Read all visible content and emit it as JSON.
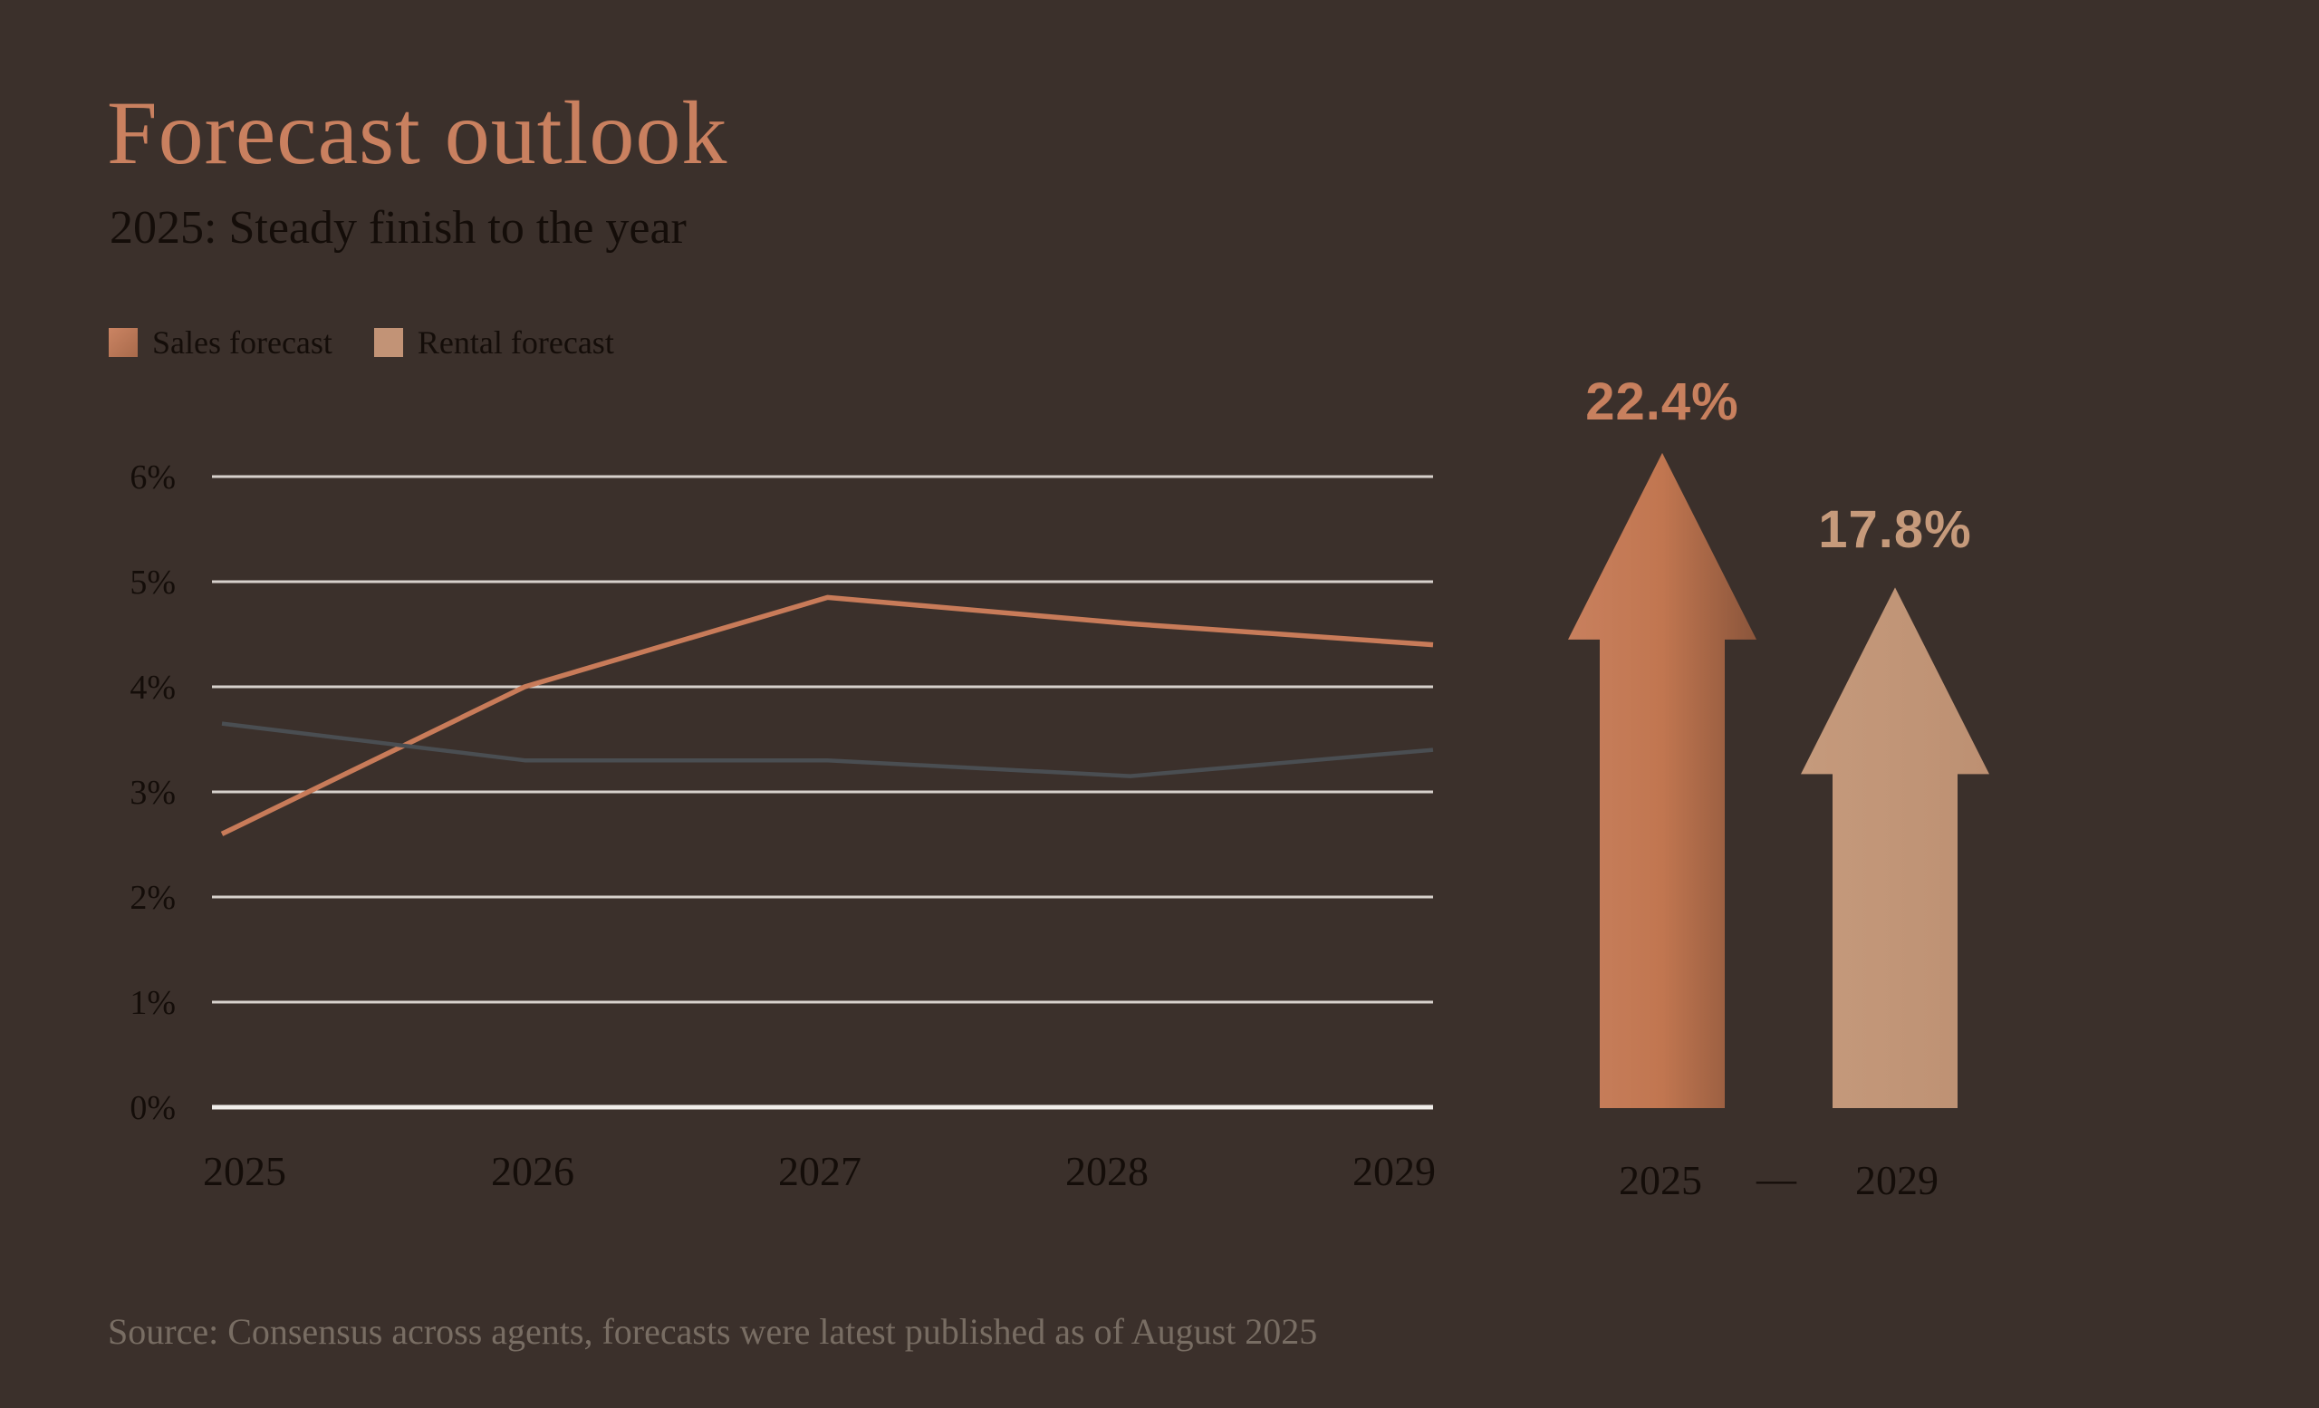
{
  "colors": {
    "background": "#3B302B",
    "title": "#C9805F",
    "text_dark": "#140D09",
    "grid": "#D7D1CC",
    "axis_baseline": "#F0EDEA",
    "source_text": "#786D63"
  },
  "header": {
    "title": "Forecast outlook",
    "subtitle": "2025: Steady finish to the year"
  },
  "legend": {
    "items": [
      {
        "label": "Sales forecast",
        "swatch_from": "#CB8463",
        "swatch_to": "#A86A4B"
      },
      {
        "label": "Rental forecast",
        "swatch": "#C29376"
      }
    ]
  },
  "chart_data": {
    "type": "line",
    "title": "Forecast outlook",
    "subtitle": "2025: Steady finish to the year",
    "categories": [
      "2025",
      "2026",
      "2027",
      "2028",
      "2029"
    ],
    "series": [
      {
        "name": "Sales forecast",
        "color": "#C87B59",
        "values": [
          2.6,
          4.0,
          4.85,
          4.6,
          4.4
        ]
      },
      {
        "name": "Rental forecast",
        "color": "#4A4E52",
        "values": [
          3.65,
          3.3,
          3.3,
          3.15,
          3.4
        ]
      }
    ],
    "unit": "%",
    "yticks": [
      "0%",
      "1%",
      "2%",
      "3%",
      "4%",
      "5%",
      "6%"
    ],
    "ylim": [
      0,
      6
    ],
    "grid": true,
    "legend_position": "top-left"
  },
  "arrows": {
    "items": [
      {
        "label": "22.4%",
        "value": 22.4,
        "year": "2025",
        "color": "#C8805E",
        "gradient": [
          "#C8805E",
          "#C17650",
          "#8A553B"
        ]
      },
      {
        "label": "17.8%",
        "value": 17.8,
        "year": "2029",
        "color": "#C69A7B",
        "gradient": [
          "#C59A7C",
          "#BD9072"
        ]
      }
    ],
    "separator": "—"
  },
  "footer": {
    "source": "Source: Consensus across agents, forecasts were latest published as of August 2025"
  }
}
